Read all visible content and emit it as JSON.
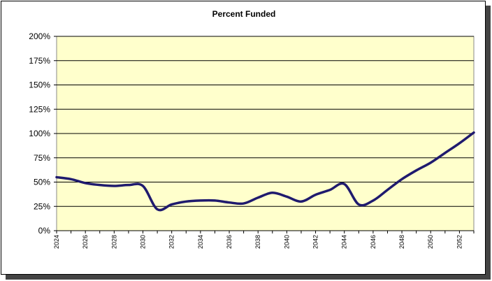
{
  "chart_data": {
    "type": "line",
    "title": "Percent Funded",
    "xlabel": "",
    "ylabel": "",
    "ylim": [
      0,
      200
    ],
    "y_ticks": [
      "0%",
      "25%",
      "50%",
      "75%",
      "100%",
      "125%",
      "150%",
      "175%",
      "200%"
    ],
    "x_ticks": [
      "2024",
      "2026",
      "2028",
      "2030",
      "2032",
      "2034",
      "2036",
      "2038",
      "2040",
      "2042",
      "2044",
      "2046",
      "2048",
      "2050",
      "2052"
    ],
    "x": [
      2024,
      2025,
      2026,
      2027,
      2028,
      2029,
      2030,
      2031,
      2032,
      2033,
      2034,
      2035,
      2036,
      2037,
      2038,
      2039,
      2040,
      2041,
      2042,
      2043,
      2044,
      2045,
      2046,
      2047,
      2048,
      2049,
      2050,
      2051,
      2052,
      2053
    ],
    "series": [
      {
        "values": [
          55,
          53,
          49,
          47,
          46,
          47,
          46,
          22,
          27,
          30,
          31,
          31,
          29,
          28,
          34,
          39,
          35,
          30,
          37,
          42,
          48,
          27,
          31,
          42,
          53,
          62,
          70,
          80,
          90,
          101
        ]
      }
    ],
    "grid": "horizontal",
    "legend": "none",
    "colors": {
      "plot_background": "#ffffcc",
      "line": "#1f1a6e",
      "grid": "#000000"
    }
  }
}
